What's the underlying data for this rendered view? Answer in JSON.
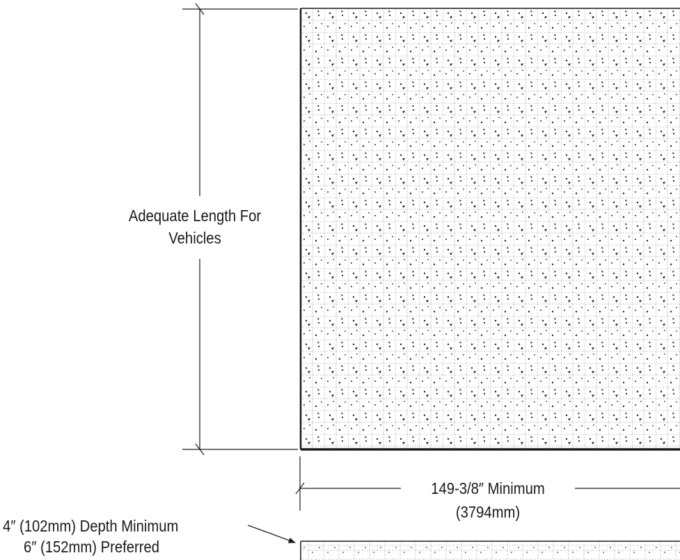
{
  "labels": {
    "length_line1": "Adequate Length For",
    "length_line2": "Vehicles",
    "width_value": "149-3/8″ Minimum",
    "width_metric": "(3794mm)",
    "depth_minimum": "4″ (102mm) Depth Minimum",
    "depth_preferred": "6″ (152mm) Preferred"
  },
  "colors": {
    "line": "#1a1a1a",
    "grid": "#9a9a9a",
    "stipple": "#222222"
  }
}
